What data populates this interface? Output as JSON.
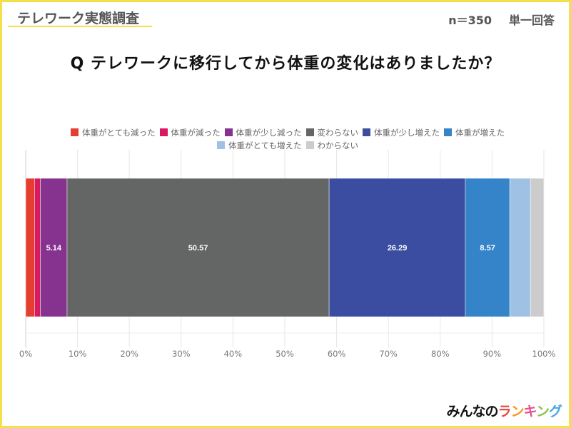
{
  "header": {
    "survey_title": "テレワーク実態調査",
    "sample_size": "n＝350",
    "answer_type": "単一回答"
  },
  "question": "Q テレワークに移行してから体重の変化はありましたか？",
  "logo": {
    "text_black": "みんなの",
    "text_color_chars": [
      "ラ",
      "ン",
      "キ",
      "ン",
      "グ"
    ],
    "colors": [
      "#e8453c",
      "#f29b1d",
      "#e84c8b",
      "#8bc34a",
      "#4aa8e0"
    ]
  },
  "chart_data": {
    "type": "bar",
    "orientation": "horizontal",
    "stacked": true,
    "title": "Q テレワークに移行してから体重の変化はありましたか？",
    "xlabel": "",
    "ylabel": "",
    "xlim": [
      0,
      100
    ],
    "x_ticks": [
      "0%",
      "10%",
      "20%",
      "30%",
      "40%",
      "50%",
      "60%",
      "70%",
      "80%",
      "90%",
      "100%"
    ],
    "grid": true,
    "legend_position": "top",
    "categories": [
      ""
    ],
    "series": [
      {
        "name": "体重がとても減った",
        "color": "#e53e30",
        "values": [
          1.71
        ],
        "label": ""
      },
      {
        "name": "体重が減った",
        "color": "#d81b60",
        "values": [
          1.14
        ],
        "label": ""
      },
      {
        "name": "体重が少し減った",
        "color": "#86328f",
        "values": [
          5.14
        ],
        "label": "5.14"
      },
      {
        "name": "変わらない",
        "color": "#646565",
        "values": [
          50.57
        ],
        "label": "50.57"
      },
      {
        "name": "体重が少し増えた",
        "color": "#3b4da0",
        "values": [
          26.29
        ],
        "label": "26.29"
      },
      {
        "name": "体重が増えた",
        "color": "#3583c8",
        "values": [
          8.57
        ],
        "label": "8.57"
      },
      {
        "name": "体重がとても増えた",
        "color": "#9fc2e4",
        "values": [
          4.0
        ],
        "label": ""
      },
      {
        "name": "わからない",
        "color": "#cccccc",
        "values": [
          2.57
        ],
        "label": ""
      }
    ]
  }
}
